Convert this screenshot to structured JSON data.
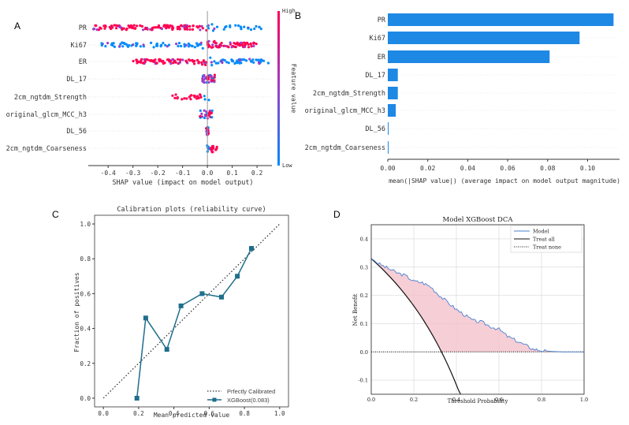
{
  "colors": {
    "shap_high": "#ff0052",
    "shap_low": "#008bfb",
    "bar": "#1e88e5",
    "calib": "#1f6e8c",
    "dca_model": "#4a7fd1",
    "dca_fill": "#f4c2cc",
    "axis": "#333333"
  },
  "chart_data": [
    {
      "panel": "A",
      "type": "scatter",
      "title": "",
      "xlabel": "SHAP value (impact on model output)",
      "ylabel": "",
      "xlim": [
        -0.48,
        0.26
      ],
      "xticks": [
        "-0.4",
        "-0.3",
        "-0.2",
        "-0.1",
        "0.0",
        "0.1",
        "0.2"
      ],
      "tick_values": [
        -0.4,
        -0.3,
        -0.2,
        -0.1,
        0.0,
        0.1,
        0.2
      ],
      "features": [
        "PR",
        "Ki67",
        "ER",
        "DL_17",
        "2cm_ngtdm_Strength",
        "original_glcm_MCC_h3",
        "DL_56",
        "2cm_ngtdm_Coarseness"
      ],
      "feature_spread": [
        {
          "name": "PR",
          "min": -0.46,
          "max": 0.22
        },
        {
          "name": "Ki67",
          "min": -0.43,
          "max": 0.2
        },
        {
          "name": "ER",
          "min": -0.3,
          "max": 0.25
        },
        {
          "name": "DL_17",
          "min": -0.02,
          "max": 0.03
        },
        {
          "name": "2cm_ngtdm_Strength",
          "min": -0.15,
          "max": 0.01
        },
        {
          "name": "original_glcm_MCC_h3",
          "min": -0.03,
          "max": 0.02
        },
        {
          "name": "DL_56",
          "min": -0.005,
          "max": 0.005
        },
        {
          "name": "2cm_ngtdm_Coarseness",
          "min": -0.005,
          "max": 0.04
        }
      ],
      "colorbar": {
        "label": "Feature value",
        "high": "High",
        "low": "Low"
      }
    },
    {
      "panel": "B",
      "type": "bar",
      "title": "",
      "xlabel": "mean(|SHAP value|) (average impact on model output magnitude)",
      "categories": [
        "PR",
        "Ki67",
        "ER",
        "DL_17",
        "2cm_ngtdm_Strength",
        "original_glcm_MCC_h3",
        "DL_56",
        "2cm_ngtdm_Coarseness"
      ],
      "values": [
        0.113,
        0.096,
        0.081,
        0.005,
        0.005,
        0.004,
        0.0,
        0.0
      ],
      "xlim": [
        0.0,
        0.116
      ],
      "xticks": [
        "0.00",
        "0.02",
        "0.04",
        "0.06",
        "0.08",
        "0.10"
      ],
      "tick_values": [
        0.0,
        0.02,
        0.04,
        0.06,
        0.08,
        0.1
      ]
    },
    {
      "panel": "C",
      "type": "line",
      "title": "Calibration plots  (reliability curve)",
      "xlabel": "Mean predicted value",
      "ylabel": "Fraction of positives",
      "xlim": [
        -0.05,
        1.05
      ],
      "ylim": [
        -0.05,
        1.05
      ],
      "xticks": [
        "0.0",
        "0.2",
        "0.4",
        "0.6",
        "0.8",
        "1.0"
      ],
      "yticks": [
        "0.0",
        "0.2",
        "0.4",
        "0.6",
        "0.8",
        "1.0"
      ],
      "tick_values": [
        0.0,
        0.2,
        0.4,
        0.6,
        0.8,
        1.0
      ],
      "series": [
        {
          "name": "Prfectly Calibrated",
          "style": "dotted",
          "x": [
            0.0,
            1.0
          ],
          "y": [
            0.0,
            1.0
          ]
        },
        {
          "name": "XGBoost(0.083)",
          "style": "solid-square",
          "x": [
            0.19,
            0.24,
            0.36,
            0.44,
            0.56,
            0.67,
            0.76,
            0.84
          ],
          "y": [
            0.0,
            0.46,
            0.28,
            0.53,
            0.6,
            0.58,
            0.7,
            0.86
          ]
        }
      ],
      "legend": "bottom-right"
    },
    {
      "panel": "D",
      "type": "line",
      "title": "Model XGBoost DCA",
      "xlabel": "Threshold Probability",
      "ylabel": "Net Benefit",
      "xlim": [
        0.0,
        1.0
      ],
      "ylim": [
        -0.15,
        0.45
      ],
      "xticks": [
        "0.0",
        "0.2",
        "0.4",
        "0.6",
        "0.8",
        "1.0"
      ],
      "xtick_values": [
        0.0,
        0.2,
        0.4,
        0.6,
        0.8,
        1.0
      ],
      "yticks": [
        "-0.1",
        "0.0",
        "0.1",
        "0.2",
        "0.3",
        "0.4"
      ],
      "ytick_values": [
        -0.1,
        0.0,
        0.1,
        0.2,
        0.3,
        0.4
      ],
      "series": [
        {
          "name": "Model",
          "style": "solid-blue",
          "x": [
            0.0,
            0.04,
            0.08,
            0.12,
            0.16,
            0.2,
            0.24,
            0.28,
            0.32,
            0.36,
            0.4,
            0.44,
            0.48,
            0.52,
            0.56,
            0.6,
            0.64,
            0.68,
            0.72,
            0.76,
            0.8,
            0.84,
            0.9,
            1.0
          ],
          "y": [
            0.33,
            0.31,
            0.295,
            0.28,
            0.27,
            0.25,
            0.245,
            0.23,
            0.2,
            0.175,
            0.15,
            0.13,
            0.11,
            0.105,
            0.09,
            0.08,
            0.055,
            0.04,
            0.025,
            0.01,
            0.005,
            0.002,
            0.0,
            0.0
          ]
        },
        {
          "name": "Treat all",
          "style": "solid-black",
          "prevalence": 0.33
        },
        {
          "name": "Treat none",
          "style": "dotted",
          "x": [
            0.0,
            1.0
          ],
          "y": [
            0.0,
            0.0
          ]
        }
      ],
      "legend": "top-right"
    }
  ],
  "panel_labels": [
    "A",
    "B",
    "C",
    "D"
  ]
}
